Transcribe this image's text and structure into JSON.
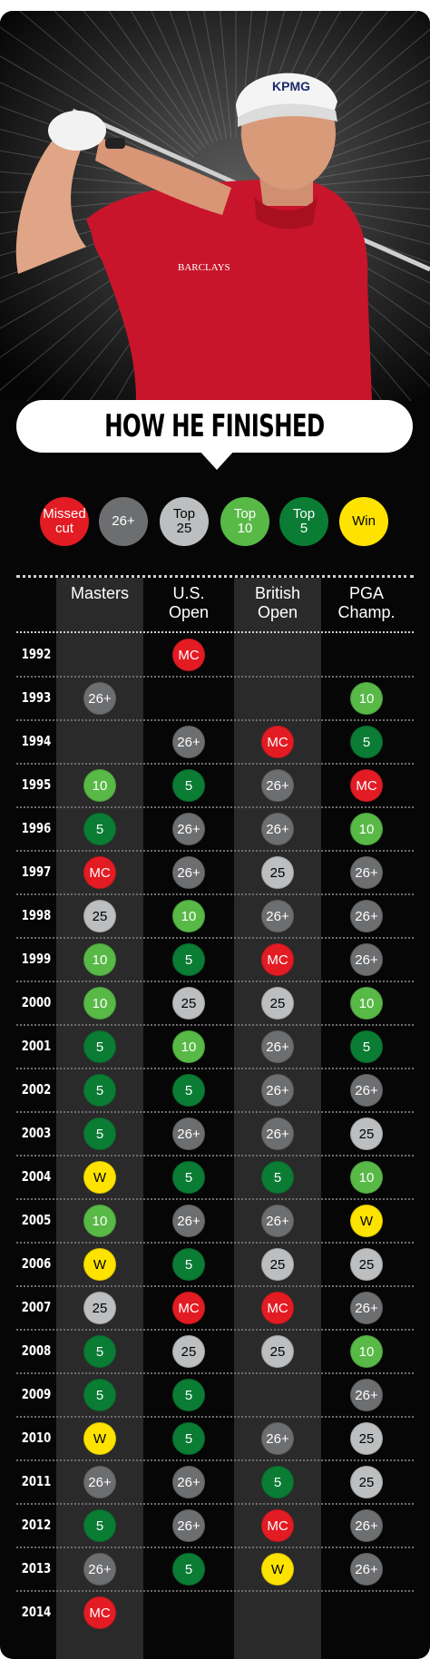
{
  "title": "HOW HE FINISHED",
  "hero": {
    "photo_description": "golfer-photo",
    "cap_logo_text": "KPMG",
    "shirt_logo_text": "BARCLAYS"
  },
  "legend": [
    {
      "key": "MC",
      "label": "Missed\ncut",
      "color": "#e31b23",
      "text_color": "#ffffff"
    },
    {
      "key": "26+",
      "label": "26+",
      "color": "#6d6e70",
      "text_color": "#ffffff"
    },
    {
      "key": "25",
      "label": "Top\n25",
      "color": "#bcbec0",
      "text_color": "#000000"
    },
    {
      "key": "10",
      "label": "Top\n10",
      "color": "#58b947",
      "text_color": "#ffffff"
    },
    {
      "key": "5",
      "label": "Top\n5",
      "color": "#0a7c34",
      "text_color": "#ffffff"
    },
    {
      "key": "W",
      "label": "Win",
      "color": "#ffe300",
      "text_color": "#000000"
    }
  ],
  "columns": [
    "Masters",
    "U.S.\nOpen",
    "British\nOpen",
    "PGA\nChamp."
  ],
  "rows": [
    {
      "year": "1992",
      "results": [
        "",
        "MC",
        "",
        ""
      ]
    },
    {
      "year": "1993",
      "results": [
        "26+",
        "",
        "",
        "10"
      ]
    },
    {
      "year": "1994",
      "results": [
        "",
        "26+",
        "MC",
        "5"
      ]
    },
    {
      "year": "1995",
      "results": [
        "10",
        "5",
        "26+",
        "MC"
      ]
    },
    {
      "year": "1996",
      "results": [
        "5",
        "26+",
        "26+",
        "10"
      ]
    },
    {
      "year": "1997",
      "results": [
        "MC",
        "26+",
        "25",
        "26+"
      ]
    },
    {
      "year": "1998",
      "results": [
        "25",
        "10",
        "26+",
        "26+"
      ]
    },
    {
      "year": "1999",
      "results": [
        "10",
        "5",
        "MC",
        "26+"
      ]
    },
    {
      "year": "2000",
      "results": [
        "10",
        "25",
        "25",
        "10"
      ]
    },
    {
      "year": "2001",
      "results": [
        "5",
        "10",
        "26+",
        "5"
      ]
    },
    {
      "year": "2002",
      "results": [
        "5",
        "5",
        "26+",
        "26+"
      ]
    },
    {
      "year": "2003",
      "results": [
        "5",
        "26+",
        "26+",
        "25"
      ]
    },
    {
      "year": "2004",
      "results": [
        "W",
        "5",
        "5",
        "10"
      ]
    },
    {
      "year": "2005",
      "results": [
        "10",
        "26+",
        "26+",
        "W"
      ]
    },
    {
      "year": "2006",
      "results": [
        "W",
        "5",
        "25",
        "25"
      ]
    },
    {
      "year": "2007",
      "results": [
        "25",
        "MC",
        "MC",
        "26+"
      ]
    },
    {
      "year": "2008",
      "results": [
        "5",
        "25",
        "25",
        "10"
      ]
    },
    {
      "year": "2009",
      "results": [
        "5",
        "5",
        "",
        "26+"
      ]
    },
    {
      "year": "2010",
      "results": [
        "W",
        "5",
        "26+",
        "25"
      ]
    },
    {
      "year": "2011",
      "results": [
        "26+",
        "26+",
        "5",
        "25"
      ]
    },
    {
      "year": "2012",
      "results": [
        "5",
        "26+",
        "MC",
        "26+"
      ]
    },
    {
      "year": "2013",
      "results": [
        "26+",
        "5",
        "W",
        "26+"
      ]
    },
    {
      "year": "2014",
      "results": [
        "MC",
        "",
        "",
        ""
      ]
    }
  ]
}
